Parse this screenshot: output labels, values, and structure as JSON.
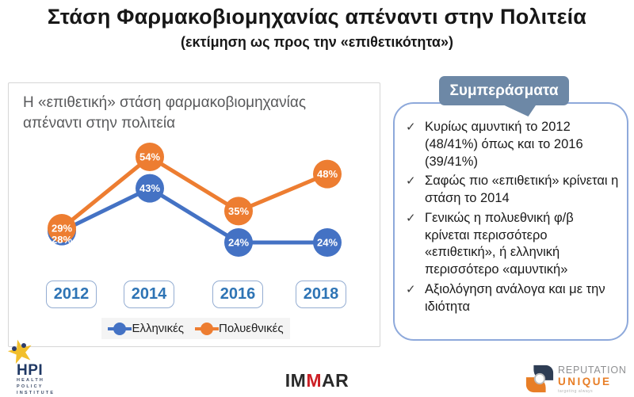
{
  "slide": {
    "title": "Στάση Φαρμακοβιομηχανίας απέναντι στην Πολιτεία",
    "subtitle": "(εκτίμηση ως προς την «επιθετικότητα»)"
  },
  "chart_data": {
    "type": "line",
    "title": "Η «επιθετική» στάση φαρμακοβιομηχανίας απέναντι στην πολιτεία",
    "categories": [
      "2012",
      "2014",
      "2016",
      "2018"
    ],
    "series": [
      {
        "name": "Ελληνικές",
        "color": "#4472C4",
        "values": [
          28,
          43,
          24,
          24
        ]
      },
      {
        "name": "Πολυεθνικές",
        "color": "#ED7D31",
        "values": [
          29,
          54,
          35,
          48
        ]
      }
    ],
    "label_format": "percent",
    "data_labels": true,
    "legend_position": "bottom",
    "grid": false,
    "ylim": [
      0,
      60
    ]
  },
  "conclusions": {
    "header": "Συμπεράσματα",
    "check_icon": "✓",
    "items": [
      "Κυρίως αμυντική το 2012 (48/41%) όπως και το 2016 (39/41%)",
      "Σαφώς πιο «επιθετική» κρίνεται η στάση το 2014",
      "Γενικώς η πολυεθνική φ/β κρίνεται περισσότερο «επιθετική», ή ελληνική περισσότερο «αμυντική»",
      "Αξιολόγηση ανάλογα και με την ιδιότητα"
    ]
  },
  "footer": {
    "hpi": {
      "acronym": "HPI",
      "line1": "HEALTH",
      "line2": "POLICY",
      "line3": "INSTITUTE",
      "star_glyph": "★"
    },
    "immar": {
      "part1": "IM",
      "part2": "M",
      "part3": "AR"
    },
    "reputation": {
      "line1": "REPUTATION",
      "line2": "UNIQUE",
      "tagline": "targeting always"
    }
  },
  "colors": {
    "series_greek": "#4472C4",
    "series_multinational": "#ED7D31",
    "tab_background": "#6d88a6",
    "box_border": "#8EA9DB",
    "year_label_text": "#2E74B5"
  }
}
